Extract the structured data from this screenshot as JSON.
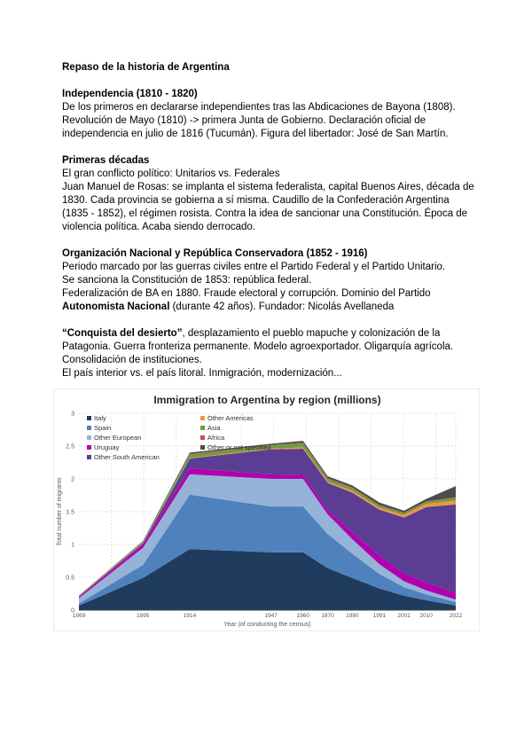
{
  "document": {
    "title": "Repaso de la historia de Argentina",
    "sections": [
      {
        "heading": "Independencia (1810 - 1820)",
        "body": [
          {
            "t": "De los primeros en declararse independientes tras las Abdicaciones de Bayona (1808). Revolución de Mayo (1810) -> primera Junta de Gobierno. Declaración oficial de independencia en julio de 1816 (Tucumán). Figura del libertador: José de San Martín."
          }
        ]
      },
      {
        "heading": "Primeras décadas",
        "body": [
          {
            "t": "El gran conflicto político: Unitarios vs. Federales\nJuan Manuel de Rosas: se implanta el sistema federalista, capital Buenos Aires, década de 1830. Cada provincia se gobierna a sí misma. Caudillo de la Confederación Argentina (1835 - 1852), el régimen rosista. Contra la idea de sancionar una Constitución. Época de violencia política. Acaba siendo derrocado."
          }
        ]
      },
      {
        "heading": "Organización Nacional y República Conservadora (1852 - 1916)",
        "body": [
          {
            "t": "Periodo marcado por las guerras civiles entre el Partido Federal y el Partido Unitario.\nSe sanciona la Constitución de 1853: república federal.\nFederalización de BA en 1880. Fraude electoral y corrupción. Dominio del Partido "
          },
          {
            "t": "Autonomista Nacional",
            "b": true
          },
          {
            "t": " (durante 42 años). Fundador: Nicolás Avellaneda"
          }
        ]
      },
      {
        "heading": "",
        "body": [
          {
            "t": "“Conquista del desierto”",
            "b": true
          },
          {
            "t": ", desplazamiento el pueblo mapuche y colonización de la Patagonia. Guerra fronteriza permanente. Modelo agroexportador. Oligarquía agrícola. Consolidación de instituciones.\nEl país interior vs. el país litoral. Inmigración, modernización..."
          }
        ]
      }
    ]
  },
  "chart_data": {
    "type": "area",
    "stacked": true,
    "title": "Immigration to Argentina by region (millions)",
    "xlabel": "Year (of conducting the census)",
    "ylabel": "Total number of migrants",
    "x": [
      1869,
      1895,
      1914,
      1947,
      1960,
      1970,
      1980,
      1991,
      2001,
      2010,
      2022
    ],
    "ylim": [
      0,
      3
    ],
    "yticks": [
      0,
      0.5,
      1,
      1.5,
      2,
      2.5,
      3
    ],
    "grid": true,
    "legend_position": "top-left",
    "series": [
      {
        "name": "Italy",
        "color": "#1f3b5e",
        "values": [
          0.07,
          0.49,
          0.93,
          0.88,
          0.88,
          0.64,
          0.49,
          0.33,
          0.22,
          0.15,
          0.07
        ]
      },
      {
        "name": "Spain",
        "color": "#4f81bd",
        "values": [
          0.03,
          0.2,
          0.83,
          0.7,
          0.7,
          0.52,
          0.37,
          0.22,
          0.13,
          0.09,
          0.05
        ]
      },
      {
        "name": "Other European",
        "color": "#95b3d7",
        "values": [
          0.08,
          0.26,
          0.31,
          0.42,
          0.42,
          0.3,
          0.22,
          0.15,
          0.09,
          0.06,
          0.04
        ]
      },
      {
        "name": "Uruguay",
        "color": "#b200ae",
        "values": [
          0.02,
          0.05,
          0.09,
          0.07,
          0.06,
          0.06,
          0.11,
          0.13,
          0.12,
          0.12,
          0.1
        ]
      },
      {
        "name": "Other South American",
        "color": "#5b3d94",
        "values": [
          0.01,
          0.02,
          0.15,
          0.38,
          0.4,
          0.42,
          0.6,
          0.7,
          0.85,
          1.15,
          1.35
        ]
      },
      {
        "name": "Other Americas",
        "color": "#f0953f",
        "values": [
          0.005,
          0.01,
          0.01,
          0.01,
          0.02,
          0.02,
          0.03,
          0.03,
          0.04,
          0.05,
          0.06
        ]
      },
      {
        "name": "Asia",
        "color": "#6f9b3c",
        "values": [
          0.002,
          0.01,
          0.05,
          0.05,
          0.06,
          0.04,
          0.04,
          0.03,
          0.03,
          0.03,
          0.04
        ]
      },
      {
        "name": "Africa",
        "color": "#b8544c",
        "values": [
          0.001,
          0.003,
          0.01,
          0.005,
          0.01,
          0.01,
          0.01,
          0.01,
          0.005,
          0.005,
          0.01
        ]
      },
      {
        "name": "Other or not specified",
        "color": "#4d4d4d",
        "values": [
          0.005,
          0.01,
          0.02,
          0.02,
          0.03,
          0.03,
          0.03,
          0.04,
          0.03,
          0.04,
          0.17
        ]
      }
    ]
  }
}
